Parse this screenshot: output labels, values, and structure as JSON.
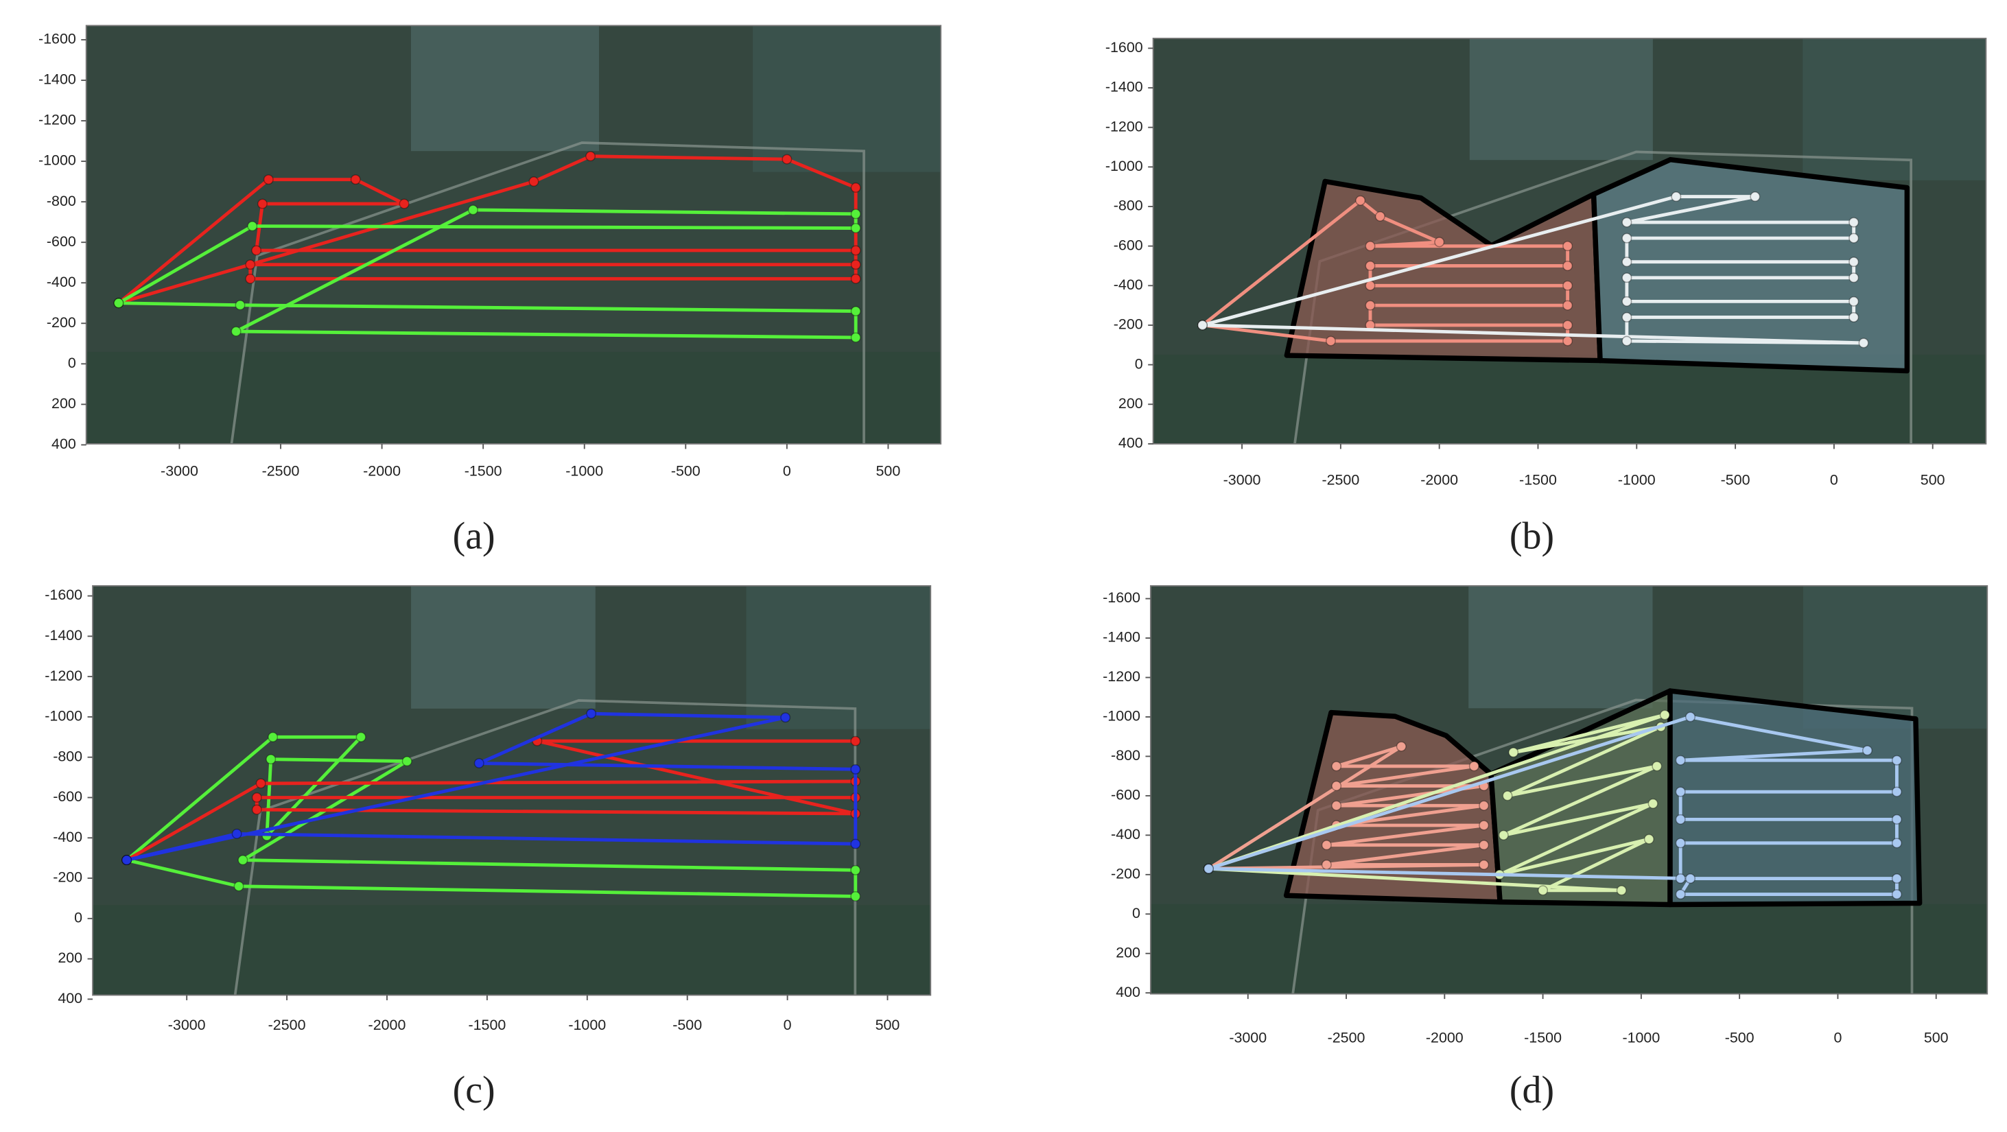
{
  "chart_data": [
    {
      "type": "line",
      "label": "(a)",
      "y_inverted": true,
      "markers": true,
      "xlim": [
        -3460,
        760
      ],
      "ylim": [
        -1670,
        395
      ],
      "xticks": [
        -3000,
        -2500,
        -2000,
        -1500,
        -1000,
        -500,
        0,
        500
      ],
      "yticks": [
        -1600,
        -1400,
        -1200,
        -1000,
        -800,
        -600,
        -400,
        -200,
        0,
        200,
        400
      ],
      "regions": [],
      "series": [
        {
          "color": "#e8231e",
          "x": [
            -3300,
            -2560,
            -2130,
            -1890,
            -2590,
            -2620,
            340,
            340,
            -2650,
            -2650,
            340,
            340,
            0,
            -970,
            -1250,
            -3300
          ],
          "y": [
            -300,
            -910,
            -910,
            -790,
            -790,
            -560,
            -560,
            -490,
            -490,
            -420,
            -420,
            -870,
            -1010,
            -1025,
            -900,
            -300
          ]
        },
        {
          "color": "#55f03a",
          "x": [
            -3300,
            -2640,
            340,
            340,
            -1550,
            -2720,
            340,
            340,
            -2700,
            -3300
          ],
          "y": [
            -300,
            -680,
            -670,
            -740,
            -760,
            -160,
            -130,
            -260,
            -290,
            -300
          ]
        }
      ]
    },
    {
      "type": "line",
      "label": "(b)",
      "y_inverted": true,
      "markers": true,
      "xlim": [
        -3450,
        770
      ],
      "ylim": [
        -1650,
        400
      ],
      "xticks": [
        -3000,
        -2500,
        -2000,
        -1500,
        -1000,
        -500,
        0,
        500
      ],
      "yticks": [
        -1600,
        -1400,
        -1200,
        -1000,
        -800,
        -600,
        -400,
        -200,
        0,
        200,
        400
      ],
      "regions": [
        {
          "color": "#8a5a52",
          "x": [
            -2773,
            -2579,
            -2093,
            -1736,
            -1218,
            -1185
          ],
          "y": [
            -47,
            -927,
            -843,
            -603,
            -862,
            -21
          ]
        },
        {
          "color": "#5f7f8a",
          "x": [
            -1218,
            -829,
            370,
            370,
            -1185
          ],
          "y": [
            -862,
            -1037,
            -895,
            31,
            -21
          ]
        }
      ],
      "series": [
        {
          "color": "#f08f80",
          "x": [
            -3200,
            -2400,
            -2300,
            -2000,
            -2350,
            -1350,
            -1350,
            -2350,
            -2350,
            -1350,
            -1350,
            -2350,
            -2350,
            -1350,
            -1350,
            -2550,
            -3200
          ],
          "y": [
            -200,
            -830,
            -750,
            -620,
            -600,
            -600,
            -500,
            -500,
            -400,
            -400,
            -300,
            -300,
            -200,
            -200,
            -120,
            -120,
            -200
          ]
        },
        {
          "color": "#e8eef0",
          "x": [
            -3200,
            -800,
            -400,
            -1050,
            100,
            100,
            -1050,
            -1050,
            100,
            100,
            -1050,
            -1050,
            100,
            100,
            -1050,
            -1050,
            150,
            -3200
          ],
          "y": [
            -200,
            -850,
            -850,
            -720,
            -720,
            -640,
            -640,
            -520,
            -520,
            -440,
            -440,
            -320,
            -320,
            -240,
            -240,
            -120,
            -110,
            -200
          ]
        }
      ]
    },
    {
      "type": "line",
      "label": "(c)",
      "y_inverted": true,
      "markers": true,
      "xlim": [
        -3470,
        715
      ],
      "ylim": [
        -1650,
        380
      ],
      "xticks": [
        -3000,
        -2500,
        -2000,
        -1500,
        -1000,
        -500,
        0,
        500
      ],
      "yticks": [
        -1600,
        -1400,
        -1200,
        -1000,
        -800,
        -600,
        -400,
        -200,
        0,
        200,
        400
      ],
      "regions": [],
      "series": [
        {
          "color": "#55f03a",
          "x": [
            -3300,
            -2570,
            -2130,
            -2600,
            -2580,
            -1900,
            -2720,
            340,
            340,
            -2740,
            -3300
          ],
          "y": [
            -290,
            -900,
            -900,
            -410,
            -790,
            -780,
            -290,
            -240,
            -110,
            -160,
            -290
          ]
        },
        {
          "color": "#e8231e",
          "x": [
            -3300,
            -2630,
            340,
            340,
            -2650,
            -2650,
            340,
            -1250,
            340
          ],
          "y": [
            -290,
            -670,
            -680,
            -600,
            -600,
            -540,
            -520,
            -880,
            -880
          ]
        },
        {
          "color": "#2033e0",
          "x": [
            -3300,
            -2750,
            340,
            340,
            -1540,
            -980,
            -10,
            -3300
          ],
          "y": [
            -290,
            -420,
            -370,
            -740,
            -770,
            -1016,
            -997,
            -290
          ]
        }
      ]
    },
    {
      "type": "line",
      "label": "(d)",
      "y_inverted": true,
      "markers": true,
      "xlim": [
        -3495,
        760
      ],
      "ylim": [
        -1665,
        405
      ],
      "xticks": [
        -3000,
        -2500,
        -2000,
        -1500,
        -1000,
        -500,
        0,
        500
      ],
      "yticks": [
        -1600,
        -1400,
        -1200,
        -1000,
        -800,
        -600,
        -400,
        -200,
        0,
        200,
        400
      ],
      "regions": [
        {
          "color": "#8a5a52",
          "x": [
            -2805,
            -2577,
            -2252,
            -1992,
            -1764,
            -1718
          ],
          "y": [
            -94,
            -1022,
            -1003,
            -905,
            -710,
            -61
          ]
        },
        {
          "color": "#5c7058",
          "x": [
            -1764,
            -853,
            -853,
            -1718
          ],
          "y": [
            -710,
            -1132,
            -48,
            -61
          ]
        },
        {
          "color": "#4e6e7a",
          "x": [
            -853,
            396,
            416,
            -853
          ],
          "y": [
            -1132,
            -990,
            -55,
            -48
          ]
        }
      ],
      "series": [
        {
          "color": "#f0a090",
          "x": [
            -3200,
            -2220,
            -2550,
            -1850,
            -2550,
            -1800,
            -2550,
            -1800,
            -2550,
            -1800,
            -2600,
            -1800,
            -2600,
            -1800,
            -3200
          ],
          "y": [
            -230,
            -850,
            -750,
            -750,
            -650,
            -650,
            -550,
            -550,
            -450,
            -450,
            -350,
            -350,
            -250,
            -250,
            -230
          ]
        },
        {
          "color": "#d8f0b0",
          "x": [
            -3200,
            -880,
            -1650,
            -900,
            -1680,
            -920,
            -1700,
            -940,
            -1720,
            -960,
            -1500,
            -1100,
            -3200
          ],
          "y": [
            -230,
            -1010,
            -820,
            -950,
            -600,
            -750,
            -400,
            -560,
            -200,
            -380,
            -120,
            -120,
            -230
          ]
        },
        {
          "color": "#a8c8f0",
          "x": [
            -3200,
            -750,
            150,
            -800,
            300,
            300,
            -800,
            -800,
            300,
            300,
            -800,
            -800,
            300,
            300,
            -800,
            -750,
            -3200
          ],
          "y": [
            -230,
            -1000,
            -830,
            -780,
            -780,
            -620,
            -620,
            -480,
            -480,
            -360,
            -360,
            -180,
            -180,
            -100,
            -100,
            -180,
            -230
          ]
        }
      ]
    }
  ]
}
